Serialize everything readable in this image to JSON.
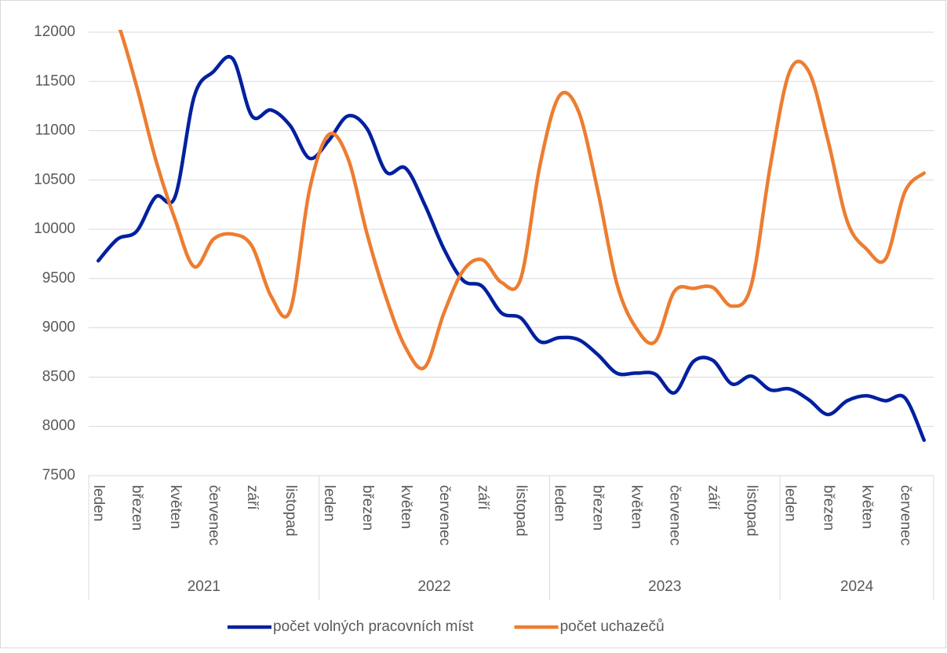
{
  "chart_data": {
    "type": "line",
    "categories": [
      "leden",
      null,
      "březen",
      null,
      "květen",
      null,
      "červenec",
      null,
      "září",
      null,
      "listopad",
      null,
      "leden",
      null,
      "březen",
      null,
      "květen",
      null,
      "červenec",
      null,
      "září",
      null,
      "listopad",
      null,
      "leden",
      null,
      "březen",
      null,
      "květen",
      null,
      "červenec",
      null,
      "září",
      null,
      "listopad",
      null,
      "leden",
      null,
      "březen",
      null,
      "květen",
      null,
      "červenec",
      null
    ],
    "x_groups": [
      "2021",
      "2022",
      "2023",
      "2024"
    ],
    "series": [
      {
        "name": "počet volných pracovních míst",
        "color": "#00209f",
        "values": [
          9680,
          9900,
          9980,
          10330,
          10330,
          11350,
          11600,
          11730,
          11150,
          11210,
          11050,
          10720,
          10900,
          11150,
          11020,
          10580,
          10620,
          10250,
          9800,
          9480,
          9420,
          9150,
          9100,
          8860,
          8900,
          8880,
          8730,
          8540,
          8540,
          8530,
          8340,
          8660,
          8670,
          8430,
          8510,
          8370,
          8380,
          8270,
          8120,
          8260,
          8310,
          8260,
          8290,
          7860
        ]
      },
      {
        "name": "počet uchazečů",
        "color": "#ed7d31",
        "values": [
          12450,
          12100,
          11450,
          10700,
          10100,
          9620,
          9900,
          9950,
          9830,
          9320,
          9180,
          10400,
          10960,
          10720,
          9950,
          9300,
          8800,
          8600,
          9150,
          9580,
          9690,
          9460,
          9500,
          10650,
          11350,
          11200,
          10400,
          9450,
          9000,
          8860,
          9370,
          9400,
          9410,
          9220,
          9430,
          10650,
          11600,
          11600,
          10900,
          10080,
          9800,
          9700,
          10380,
          10570
        ]
      }
    ],
    "ylim": [
      7500,
      12000
    ],
    "yticks": [
      7500,
      8000,
      8500,
      9000,
      9500,
      10000,
      10500,
      11000,
      11500,
      12000
    ],
    "grid": true,
    "legend": "bottom"
  }
}
